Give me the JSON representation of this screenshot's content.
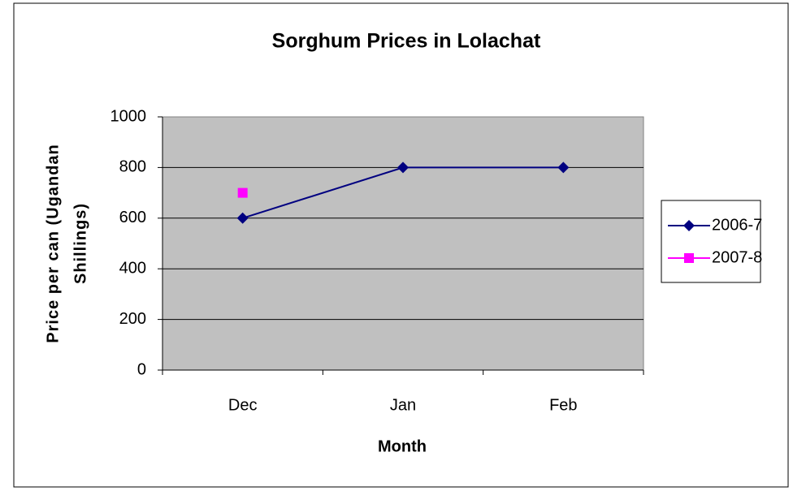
{
  "chart_data": {
    "type": "line",
    "title": "Sorghum Prices in Lolachat",
    "xlabel": "Month",
    "ylabel": [
      "Price per can (Ugandan",
      "Shillings)"
    ],
    "categories": [
      "Dec",
      "Jan",
      "Feb"
    ],
    "series": [
      {
        "name": "2006-7",
        "color": "#000080",
        "marker": "diamond",
        "values": [
          600,
          800,
          800
        ]
      },
      {
        "name": "2007-8",
        "color": "#ff00ff",
        "marker": "square",
        "values": [
          700,
          null,
          null
        ]
      }
    ],
    "ylim": [
      0,
      1000
    ],
    "yticks": [
      0,
      200,
      400,
      600,
      800,
      1000
    ],
    "grid": true,
    "legend": "right"
  }
}
